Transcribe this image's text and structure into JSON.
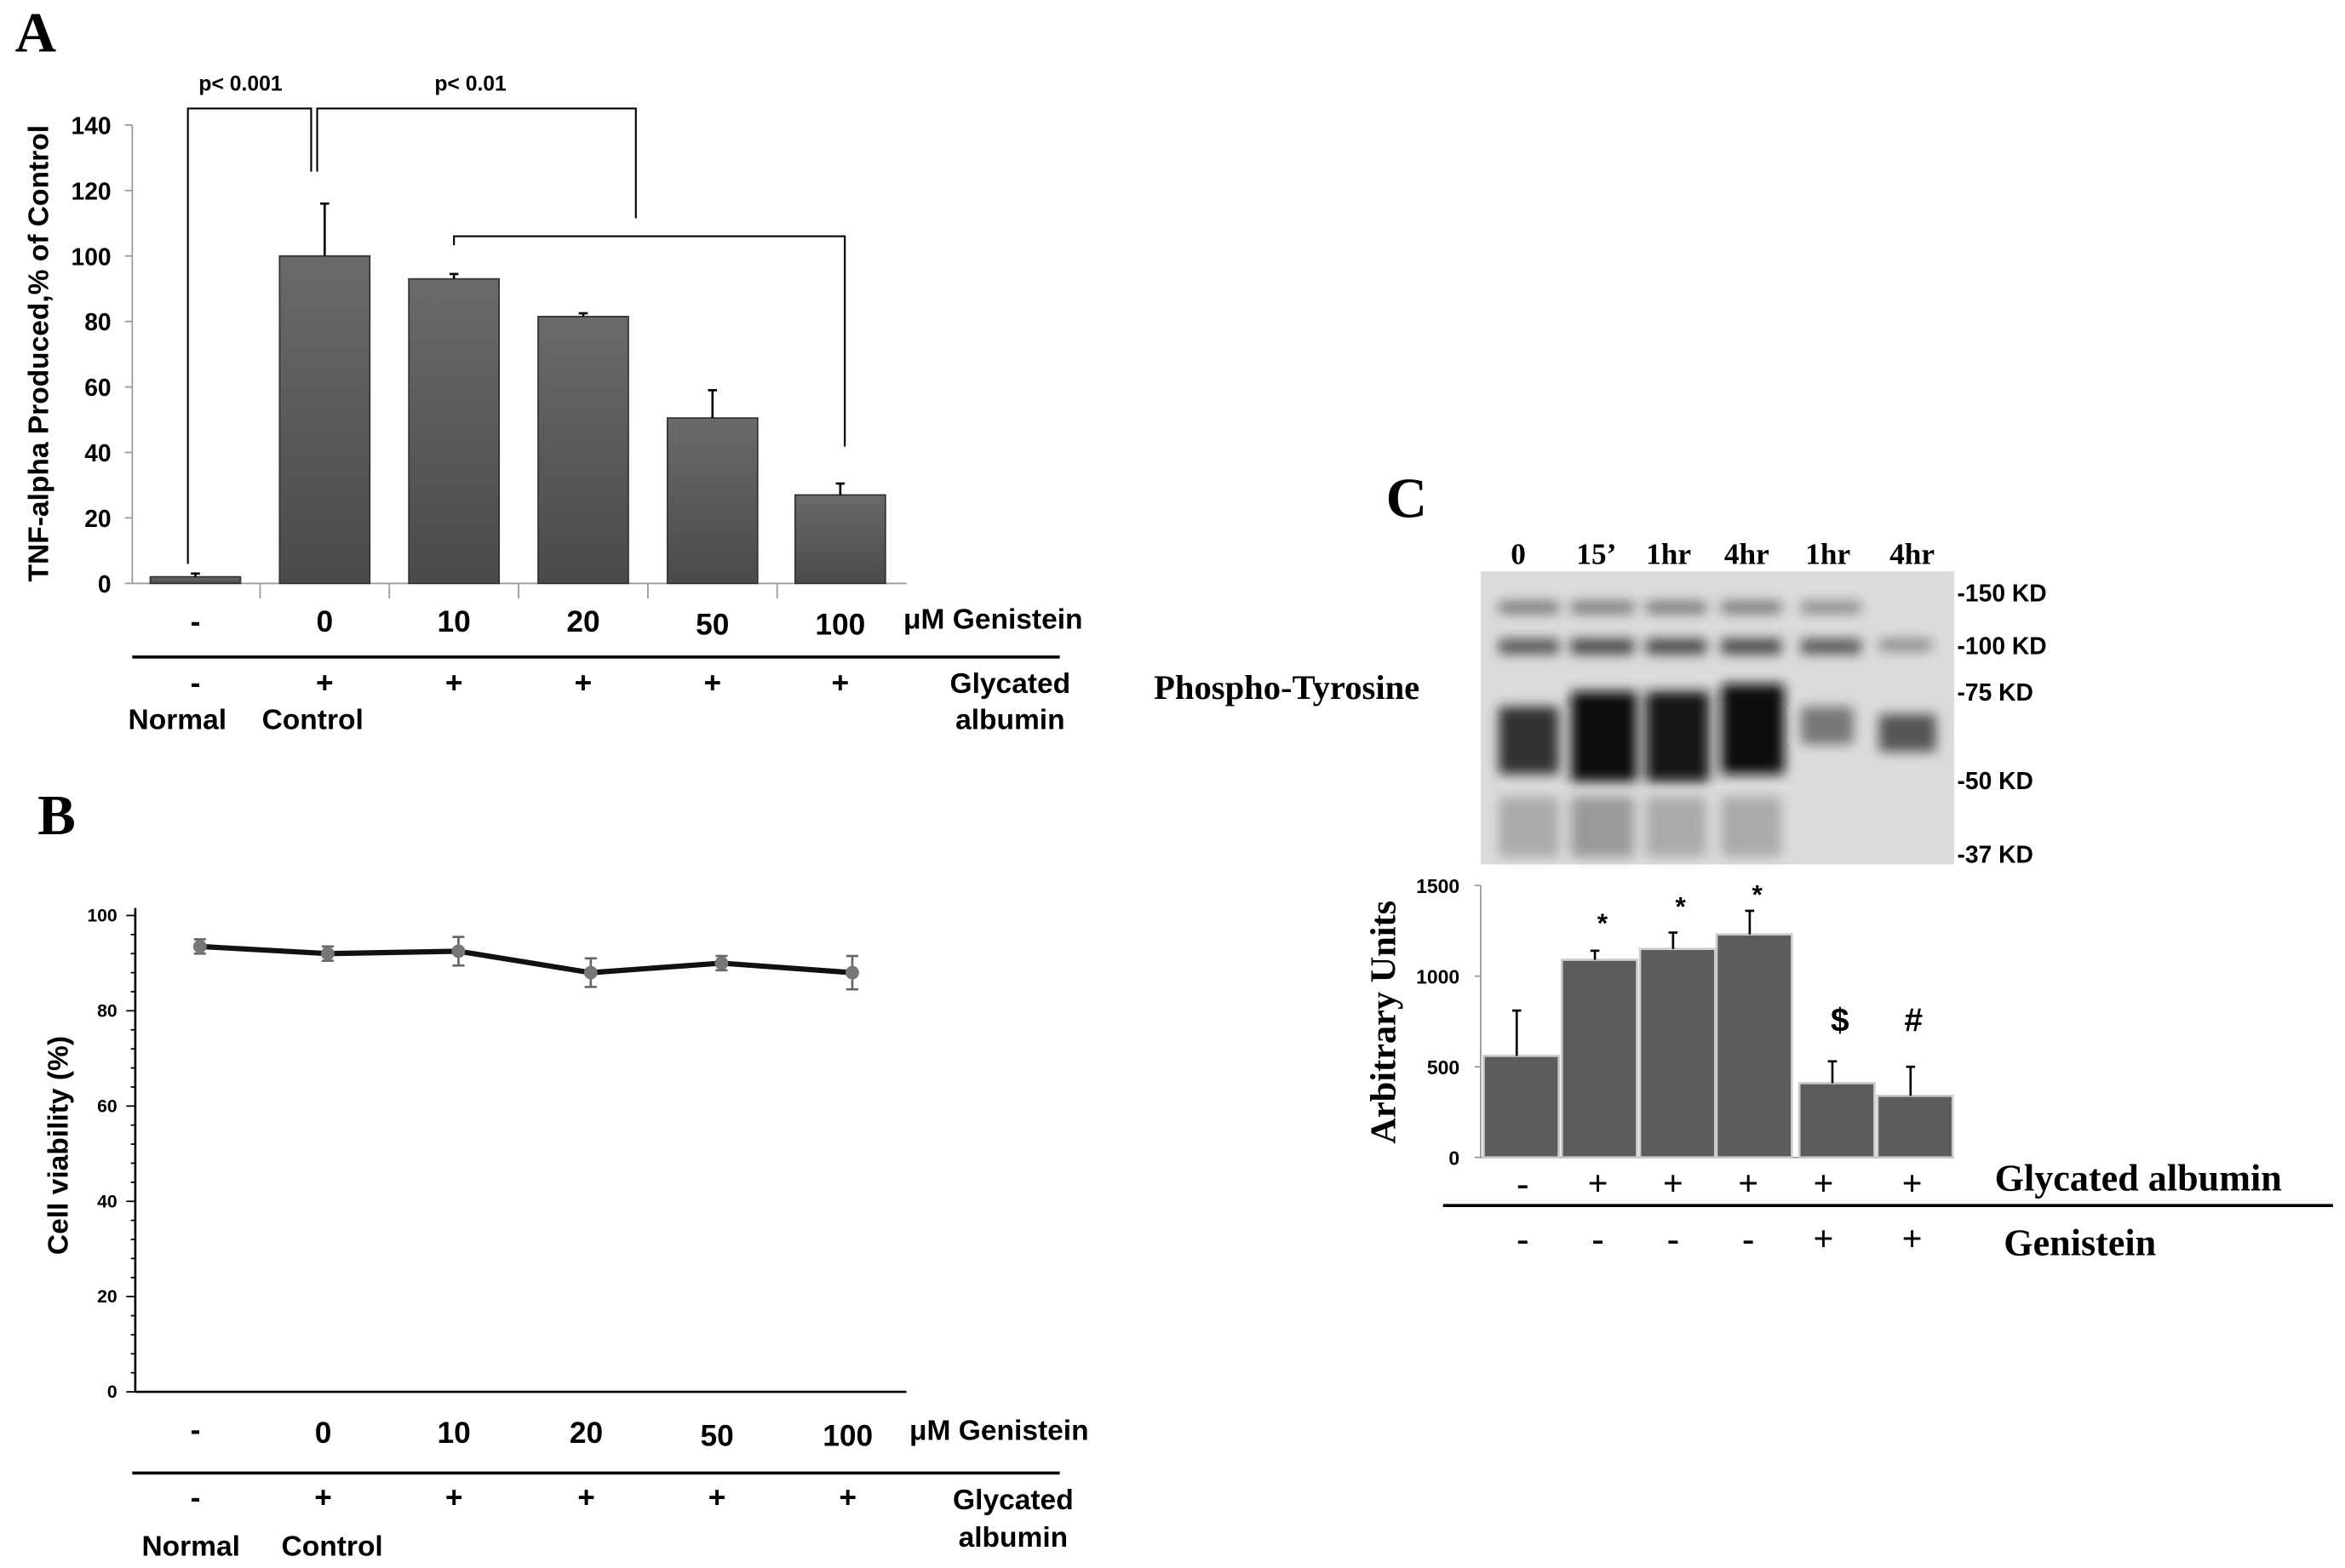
{
  "chart_data": [
    {
      "panel": "A",
      "type": "bar",
      "ylabel": "TNF-alpha Produced,% of Control",
      "ylim": [
        0,
        140
      ],
      "yticks": [
        "0",
        "20",
        "40",
        "60",
        "80",
        "100",
        "120",
        "140"
      ],
      "categories": [
        "-",
        "0",
        "10",
        "20",
        "50",
        "100"
      ],
      "category_axis_label": "μM Genistein",
      "glycated": [
        "-",
        "+",
        "+",
        "+",
        "+",
        "+"
      ],
      "glycated_label_1": "Glycated",
      "glycated_label_2": "albumin",
      "group_labels": [
        "Normal",
        "Control"
      ],
      "values": [
        2,
        100,
        93,
        81.5,
        50.5,
        27
      ],
      "errors": [
        1,
        16,
        1.5,
        1,
        8.5,
        3.5
      ],
      "annotations": [
        "p< 0.001",
        "p< 0.01"
      ],
      "bar_color": "#5a5a5a"
    },
    {
      "panel": "B",
      "type": "line",
      "ylabel": "Cell viability (%)",
      "ylim": [
        0,
        100
      ],
      "yticks": [
        "0",
        "20",
        "40",
        "60",
        "80",
        "100"
      ],
      "categories": [
        "-",
        "0",
        "10",
        "20",
        "50",
        "100"
      ],
      "category_axis_label": "μM Genistein",
      "glycated": [
        "-",
        "+",
        "+",
        "+",
        "+",
        "+"
      ],
      "glycated_label_1": "Glycated",
      "glycated_label_2": "albumin",
      "group_labels": [
        "Normal",
        "Control"
      ],
      "values": [
        93.5,
        92,
        92.5,
        88,
        90,
        88
      ],
      "errors": [
        1.5,
        1.5,
        3,
        3,
        1.5,
        3.5
      ]
    },
    {
      "panel": "C",
      "type": "bar",
      "ylabel": "Arbitrary Units",
      "ylim": [
        0,
        1500
      ],
      "yticks": [
        "0",
        "500",
        "1000",
        "1500"
      ],
      "lanes": [
        "0",
        "15’",
        "1hr",
        "4hr",
        "1hr",
        "4hr"
      ],
      "blot_label": "Phospho-Tyrosine",
      "markers": [
        "-150 KD",
        "-100 KD",
        "-75 KD",
        "-50 KD",
        "-37 KD"
      ],
      "values": [
        560,
        1090,
        1150,
        1230,
        410,
        340
      ],
      "errors": [
        250,
        50,
        90,
        130,
        120,
        160
      ],
      "significance": [
        "",
        "*",
        "*",
        "*",
        "$",
        "#"
      ],
      "glycated": [
        "-",
        "+",
        "+",
        "+",
        "+",
        "+"
      ],
      "glycated_label": "Glycated albumin",
      "genistein": [
        "-",
        "-",
        "-",
        "-",
        "+",
        "+"
      ],
      "genistein_label": "Genistein",
      "bar_color": "#5c5c5c"
    }
  ]
}
